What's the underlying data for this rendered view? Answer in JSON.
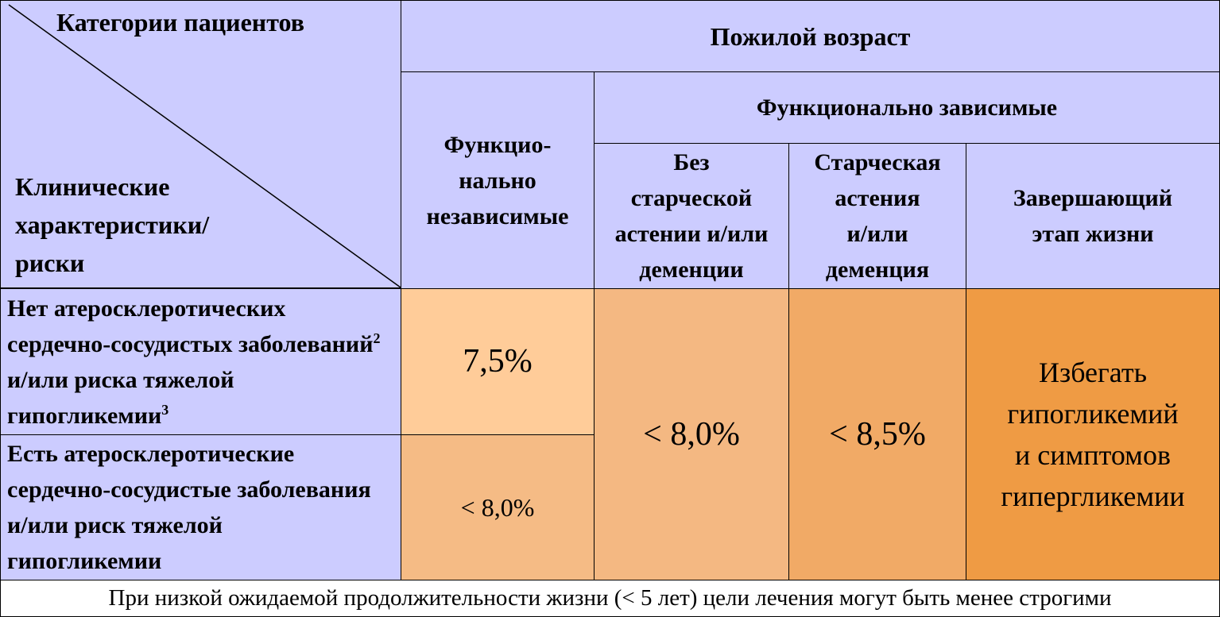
{
  "header": {
    "corner_top": "Категории пациентов",
    "corner_bottom": [
      "Клинические",
      "характеристики/",
      "риски"
    ],
    "elderly": "Пожилой возраст",
    "dependent": "Функционально зависимые",
    "independent": [
      "Функцио-",
      "нально",
      "независимые"
    ],
    "no_frailty": [
      "Без",
      "старческой",
      "астении и/или",
      "деменции"
    ],
    "frailty": [
      "Старческая",
      "астения",
      "и/или",
      "деменция"
    ],
    "end_of_life": [
      "Завершающий",
      "этап жизни"
    ]
  },
  "rows": [
    {
      "label": [
        "Нет атеросклеротических сердечно-сосудистых заболеваний",
        "2",
        " и/или риска тяжелой гипогликемии",
        "3"
      ],
      "independent": "7,5%"
    },
    {
      "label": [
        "Есть атеросклеротические сердечно-сосудистые заболевания и/или риск тяжелой гипогликемии"
      ],
      "independent": "< 8,0%"
    }
  ],
  "shared": {
    "no_frailty": "< 8,0%",
    "frailty": "< 8,5%",
    "end_of_life": [
      "Избегать",
      "гипогликемий",
      "и симптомов",
      "гипергликемии"
    ]
  },
  "footer": "При низкой ожидаемой продолжительности жизни (< 5 лет) цели лечения могут быть менее строгими"
}
